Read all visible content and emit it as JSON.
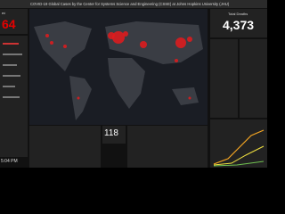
{
  "header": {
    "title": "COVID-19 Global Cases by the Center for Systems Science and Engineering (CSSE) at Johns Hopkins University (JHU)"
  },
  "confirmed": {
    "label": "ed",
    "value": "64"
  },
  "deaths": {
    "label": "Total Deaths",
    "value": "4,373"
  },
  "countries": {
    "value": "118"
  },
  "updated": {
    "time": "5:04 PM"
  }
}
